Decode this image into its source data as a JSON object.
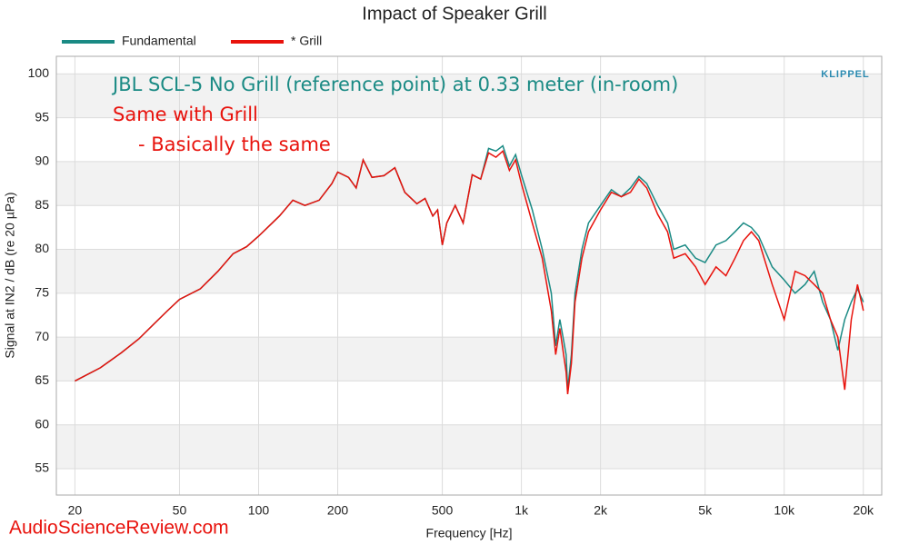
{
  "chart_data": {
    "type": "line",
    "title": "Impact of Speaker Grill",
    "xlabel": "Frequency [Hz]",
    "ylabel": "Signal at IN2 / dB (re 20 µPa)",
    "logo": "KLIPPEL",
    "watermark": "AudioScienceReview.com",
    "annotations": [
      {
        "text": "JBL SCL-5 No Grill (reference point) at 0.33 meter (in-room)",
        "color": "#1a8a84"
      },
      {
        "text": "Same with Grill",
        "color": "#e8120c"
      },
      {
        "text": "- Basically the same",
        "color": "#e8120c"
      }
    ],
    "xscale": "log",
    "xlim": [
      17,
      23500
    ],
    "ylim": [
      52,
      102
    ],
    "xticks": [
      20,
      50,
      100,
      200,
      500,
      {
        "value": 1000,
        "label": "1k"
      },
      {
        "value": 2000,
        "label": "2k"
      },
      {
        "value": 5000,
        "label": "5k"
      },
      {
        "value": 10000,
        "label": "10k"
      },
      {
        "value": 20000,
        "label": "20k"
      }
    ],
    "yticks": [
      55,
      60,
      65,
      70,
      75,
      80,
      85,
      90,
      95,
      100
    ],
    "grid": true,
    "x": [
      20,
      25,
      30,
      35,
      40,
      45,
      50,
      60,
      70,
      80,
      90,
      100,
      120,
      135,
      150,
      170,
      190,
      200,
      220,
      235,
      250,
      270,
      300,
      330,
      360,
      400,
      430,
      460,
      480,
      500,
      520,
      560,
      600,
      650,
      700,
      750,
      800,
      850,
      900,
      950,
      1000,
      1100,
      1200,
      1300,
      1350,
      1400,
      1480,
      1500,
      1550,
      1600,
      1700,
      1800,
      2000,
      2200,
      2400,
      2600,
      2800,
      3000,
      3300,
      3600,
      3800,
      4200,
      4600,
      5000,
      5500,
      6000,
      6500,
      7000,
      7500,
      8000,
      9000,
      10000,
      11000,
      12000,
      13000,
      14000,
      15000,
      16000,
      17000,
      18000,
      19000,
      20000
    ],
    "series": [
      {
        "name": "Fundamental",
        "color": "#1a8a84",
        "values": [
          65,
          66.5,
          68.2,
          69.8,
          71.5,
          73,
          74.3,
          75.5,
          77.5,
          79.5,
          80.3,
          81.5,
          83.8,
          85.6,
          85,
          85.6,
          87.5,
          88.8,
          88.2,
          87,
          90.2,
          88.2,
          88.4,
          89.3,
          86.5,
          85.2,
          85.8,
          83.8,
          84.5,
          80.5,
          83,
          85,
          83,
          88.5,
          88,
          91.5,
          91.2,
          91.8,
          89.5,
          90.8,
          88.5,
          84.5,
          80,
          75,
          69,
          72,
          68,
          64,
          68,
          75,
          80,
          83,
          85,
          86.8,
          86,
          87,
          88.3,
          87.5,
          85,
          83,
          80,
          80.5,
          79,
          78.5,
          80.5,
          81,
          82,
          83,
          82.5,
          81.5,
          78,
          76.5,
          75,
          76,
          77.5,
          74,
          72,
          68.5,
          72,
          74,
          75.5,
          74
        ]
      },
      {
        "name": "* Grill",
        "color": "#e8120c",
        "values": [
          65,
          66.5,
          68.2,
          69.8,
          71.5,
          73,
          74.3,
          75.5,
          77.5,
          79.5,
          80.3,
          81.5,
          83.8,
          85.6,
          85,
          85.6,
          87.5,
          88.8,
          88.2,
          87,
          90.2,
          88.2,
          88.4,
          89.3,
          86.5,
          85.2,
          85.8,
          83.8,
          84.5,
          80.5,
          83,
          85,
          83,
          88.5,
          88,
          91,
          90.5,
          91.2,
          89,
          90.2,
          87.5,
          83,
          79,
          73,
          68,
          71,
          66,
          63.5,
          67,
          74,
          79,
          82,
          84.5,
          86.5,
          86,
          86.5,
          88,
          87,
          84,
          82,
          79,
          79.5,
          78,
          76,
          78,
          77,
          79,
          81,
          82,
          81,
          76,
          72,
          77.5,
          77,
          76,
          75,
          72,
          70,
          64,
          72,
          76,
          73
        ]
      }
    ]
  }
}
